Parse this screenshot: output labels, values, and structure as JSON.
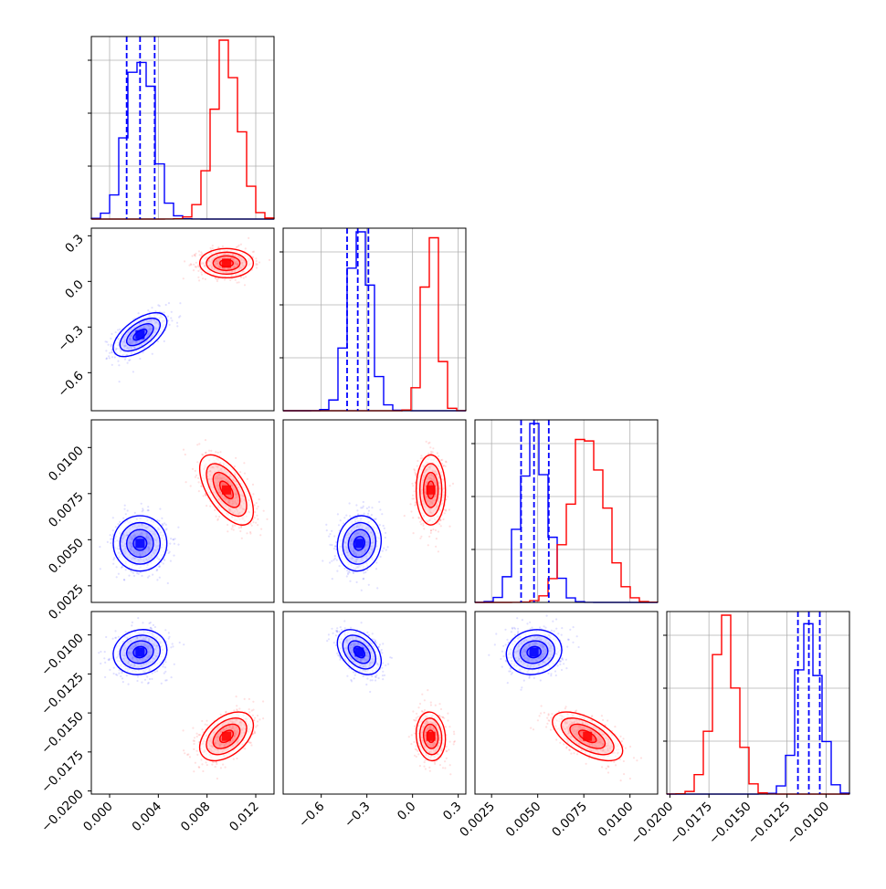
{
  "chart_data": {
    "type": "corner",
    "title": "",
    "grid": true,
    "legend": "none",
    "colors": {
      "series_a": "#0000ff",
      "series_b": "#ff0000"
    },
    "parameters": [
      {
        "range": [
          -0.0015,
          0.0135
        ],
        "ticks": [
          0.0,
          0.004,
          0.008,
          0.012
        ],
        "tick_labels": [
          "0.000",
          "0.004",
          "0.008",
          "0.012"
        ]
      },
      {
        "range": [
          -0.85,
          0.35
        ],
        "ticks": [
          -0.6,
          -0.3,
          0.0,
          0.3
        ],
        "tick_labels": [
          "−0.6",
          "−0.3",
          "0.0",
          "0.3"
        ]
      },
      {
        "range": [
          0.0016,
          0.0115
        ],
        "ticks": [
          0.0025,
          0.005,
          0.0075,
          0.01
        ],
        "tick_labels": [
          "0.0025",
          "0.0050",
          "0.0075",
          "0.0100"
        ]
      },
      {
        "range": [
          -0.0202,
          -0.0085
        ],
        "ticks": [
          -0.02,
          -0.0175,
          -0.015,
          -0.0125,
          -0.01
        ],
        "tick_labels": [
          "−0.0200",
          "−0.0175",
          "−0.0150",
          "−0.0125",
          "−0.0100"
        ]
      }
    ],
    "series": [
      {
        "color": "#0000ff",
        "means": [
          0.0025,
          -0.35,
          0.0048,
          -0.0111
        ],
        "stds": [
          0.0011,
          0.072,
          0.00075,
          0.00072
        ],
        "quantiles": [
          [
            0.0014,
            0.0025,
            0.0037
          ],
          [
            -0.43,
            -0.36,
            -0.29
          ],
          [
            0.0041,
            0.0048,
            0.0056
          ],
          [
            -0.0118,
            -0.0111,
            -0.0104
          ]
        ]
      },
      {
        "color": "#ff0000",
        "means": [
          0.0096,
          0.12,
          0.0077,
          -0.0165
        ],
        "stds": [
          0.0011,
          0.048,
          0.00095,
          0.00078
        ],
        "quantiles": null
      }
    ],
    "correlations": {
      "blue": {
        "1-0": 0.6,
        "2-0": 0.0,
        "2-1": 0.1,
        "3-0": 0.1,
        "3-1": -0.4,
        "3-2": 0.1
      },
      "red": {
        "1-0": 0.0,
        "2-0": -0.6,
        "2-1": 0.0,
        "3-0": 0.45,
        "3-1": -0.1,
        "3-2": -0.6
      }
    }
  }
}
